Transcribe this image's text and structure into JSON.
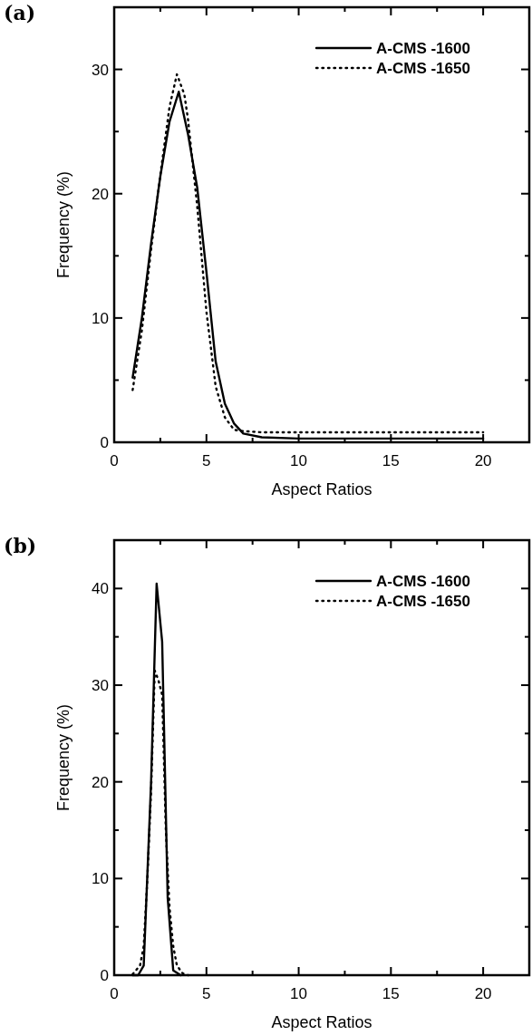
{
  "chart_data": [
    {
      "type": "line",
      "title": "(a)",
      "xlabel": "Aspect Ratios",
      "ylabel": "Frequency (%)",
      "xlim": [
        0,
        22.5
      ],
      "ylim": [
        0,
        35
      ],
      "xticks": [
        0,
        {
          "value": 2.5,
          "label": null
        },
        5,
        {
          "value": 7.5,
          "label": null
        },
        10,
        {
          "value": 12.5,
          "label": null
        },
        15,
        {
          "value": 17.5,
          "label": null
        },
        20
      ],
      "yticks": [
        0,
        {
          "value": 5,
          "label": null
        },
        10,
        {
          "value": 15,
          "label": null
        },
        20,
        {
          "value": 25,
          "label": null
        },
        30
      ],
      "legend": "top right",
      "marker": "none",
      "grid": false,
      "series": [
        {
          "name": "A-CMS -1600",
          "color": "#000000",
          "line_style": "solid",
          "x": [
            1,
            1.5,
            2,
            2.5,
            3,
            3.5,
            4,
            4.5,
            5,
            5.5,
            6,
            6.5,
            7,
            8,
            10,
            20
          ],
          "values": [
            5.2,
            10,
            16,
            21.4,
            25.8,
            28.2,
            24.8,
            20.5,
            13.7,
            6.5,
            3.1,
            1.5,
            0.7,
            0.4,
            0.3,
            0.3
          ]
        },
        {
          "name": "A-CMS -1650",
          "color": "#000000",
          "line_style": "dotted",
          "x": [
            1,
            1.5,
            2,
            2.5,
            3,
            3.4,
            3.8,
            4,
            4.5,
            5,
            5.5,
            6,
            6.5,
            7,
            8,
            20
          ],
          "values": [
            4.2,
            9,
            15.5,
            21.5,
            27,
            29.6,
            28,
            26,
            19,
            10.5,
            4.5,
            2,
            1,
            0.9,
            0.8,
            0.8
          ]
        }
      ]
    },
    {
      "type": "line",
      "title": "(b)",
      "xlabel": "Aspect Ratios",
      "ylabel": "Frequency (%)",
      "xlim": [
        0,
        22.5
      ],
      "ylim": [
        0,
        45
      ],
      "xticks": [
        0,
        {
          "value": 2.5,
          "label": null
        },
        5,
        {
          "value": 7.5,
          "label": null
        },
        10,
        {
          "value": 12.5,
          "label": null
        },
        15,
        {
          "value": 17.5,
          "label": null
        },
        20
      ],
      "yticks": [
        0,
        {
          "value": 5,
          "label": null
        },
        10,
        {
          "value": 15,
          "label": null
        },
        20,
        {
          "value": 25,
          "label": null
        },
        30,
        {
          "value": 35,
          "label": null
        },
        40
      ],
      "legend": "top right",
      "marker": "none",
      "grid": false,
      "series": [
        {
          "name": "A-CMS -1600",
          "color": "#000000",
          "line_style": "solid",
          "x": [
            1,
            1.3,
            1.6,
            2,
            2.3,
            2.6,
            2.9,
            3.2,
            3.6
          ],
          "values": [
            0,
            0,
            1,
            20,
            40.5,
            34.5,
            8,
            0.5,
            0
          ]
        },
        {
          "name": "A-CMS -1650",
          "color": "#000000",
          "line_style": "dotted",
          "x": [
            1,
            1.4,
            1.6,
            1.8,
            2,
            2.2,
            2.4,
            2.6,
            2.8,
            3,
            3.2,
            3.4,
            3.7,
            4
          ],
          "values": [
            0.1,
            1,
            3,
            10,
            19,
            31.5,
            30.5,
            29,
            15,
            7,
            3,
            1,
            0.2,
            0
          ]
        }
      ]
    }
  ]
}
